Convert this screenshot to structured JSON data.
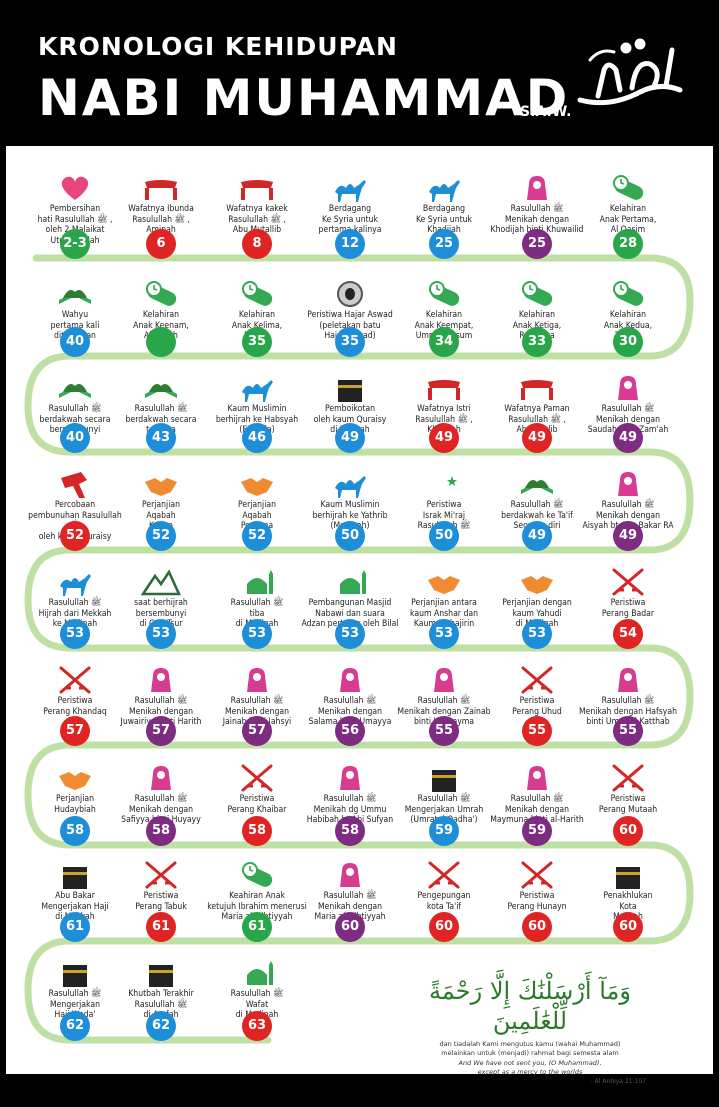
{
  "header": {
    "line1": "KRONOLOGI KEHIDUPAN",
    "line2": "NABI MUHAMMAD",
    "saw": "S.A.W."
  },
  "rows": [
    [
      {
        "icon": "heart",
        "label": "Pembersihan\nhati Rasulullah ﷺ ,\noleh 2 Malaikat\nUtusan Allah",
        "age": "2-3",
        "color": "green"
      },
      {
        "icon": "coffin",
        "label": "Wafatnya Ibunda\nRasulullah ﷺ ,\nAminah",
        "age": "6",
        "color": "red"
      },
      {
        "icon": "coffin",
        "label": "Wafatnya kakek\nRasulullah ﷺ ,\nAbu Mutallib",
        "age": "8",
        "color": "red"
      },
      {
        "icon": "camel",
        "label": "Berdagang\nKe Syria untuk\npertama kalinya",
        "age": "12",
        "color": "blue"
      },
      {
        "icon": "camel",
        "label": "Berdagang\nKe Syria untuk\nKhadijah",
        "age": "25",
        "color": "blue"
      },
      {
        "icon": "bride",
        "label": "Rasulullah ﷺ\nMenikah dengan\nKhodijah binti Khuwailid",
        "age": "25",
        "color": "purple"
      },
      {
        "icon": "baby",
        "label": "Kelahiran\nAnak Pertama,\nAl Qasim",
        "age": "28",
        "color": "green"
      }
    ],
    [
      {
        "icon": "quran",
        "label": "Wahyu\npertama kali\nditurunkan",
        "age": "40",
        "color": "blue"
      },
      {
        "icon": "baby",
        "label": "Kelahiran\nAnak Keenam,\nAbdullah",
        "age": "",
        "color": "green"
      },
      {
        "icon": "baby",
        "label": "Kelahiran\nAnak Kelima,\nFatima",
        "age": "35",
        "color": "green"
      },
      {
        "icon": "stone",
        "label": "Peristiwa Hajar Aswad\n(peletakan batu\nHajar Aswad)",
        "age": "35",
        "color": "blue"
      },
      {
        "icon": "baby",
        "label": "Kelahiran\nAnak Keempat,\nUmmi Kultsum",
        "age": "34",
        "color": "green"
      },
      {
        "icon": "baby",
        "label": "Kelahiran\nAnak Ketiga,\nRuqaiyya",
        "age": "33",
        "color": "green"
      },
      {
        "icon": "baby",
        "label": "Kelahiran\nAnak Kedua,\nZainab",
        "age": "30",
        "color": "green"
      }
    ],
    [
      {
        "icon": "quran",
        "label": "Rasulullah ﷺ\nberdakwah secara\nbersembunyi",
        "age": "40",
        "color": "blue"
      },
      {
        "icon": "quran",
        "label": "Rasulullah ﷺ\nberdakwah secara\nterbuka",
        "age": "43",
        "color": "blue"
      },
      {
        "icon": "camel",
        "label": "Kaum Muslimin\nberhijrah ke Habsyah\n(Ethopia)",
        "age": "46",
        "color": "blue"
      },
      {
        "icon": "kaaba",
        "label": "Pemboikotan\noleh kaum Quraisy\ndi Mekkah",
        "age": "49",
        "color": "blue"
      },
      {
        "icon": "coffin",
        "label": "Wafatnya Istri\nRasulullah ﷺ ,\nKhadijah",
        "age": "49",
        "color": "red"
      },
      {
        "icon": "coffin",
        "label": "Wafatnya Paman\nRasulullah ﷺ ,\nAbu Thalib",
        "age": "49",
        "color": "red"
      },
      {
        "icon": "bride",
        "label": "Rasulullah ﷺ\nMenikah dengan\nSaudah binti Zam'ah",
        "age": "49",
        "color": "purple"
      }
    ],
    [
      {
        "icon": "attack",
        "label": "Percobaan\npembunuhan Rasulullah ﷺ\noleh kaum Quraisy",
        "age": "52",
        "color": "red"
      },
      {
        "icon": "handshake",
        "label": "Perjanjian\nAqabah\nKedua",
        "age": "52",
        "color": "blue"
      },
      {
        "icon": "handshake",
        "label": "Perjanjian\nAqabah\nPertama",
        "age": "52",
        "color": "blue"
      },
      {
        "icon": "camel",
        "label": "Kaum Muslimin\nberhijrah ke Yathrib\n(Madinah)",
        "age": "50",
        "color": "blue"
      },
      {
        "icon": "moon",
        "label": "Peristiwa\nIsrak Mi'raj\nRasulullah ﷺ",
        "age": "50",
        "color": "blue"
      },
      {
        "icon": "quran",
        "label": "Rasulullah ﷺ\nberdakwah ke Ta'if\nSeorang diri",
        "age": "49",
        "color": "blue"
      },
      {
        "icon": "bride",
        "label": "Rasulullah ﷺ\nMenikah dengan\nAisyah bt Abu Bakar RA",
        "age": "49",
        "color": "purple"
      }
    ],
    [
      {
        "icon": "camel",
        "label": "Rasulullah ﷺ\nHijrah dari Mekkah\nke Madinah",
        "age": "53",
        "color": "blue"
      },
      {
        "icon": "mountain",
        "label": "saat berhijrah\nbersembunyi\ndi Gua Tsur",
        "age": "53",
        "color": "blue"
      },
      {
        "icon": "mosque",
        "label": "Rasulullah ﷺ\ntiba\ndi Madinah",
        "age": "53",
        "color": "blue"
      },
      {
        "icon": "mosque",
        "label": "Pembangunan Masjid\nNabawi dan suara\nAdzan pertama oleh Bilal",
        "age": "53",
        "color": "blue"
      },
      {
        "icon": "handshake",
        "label": "Perjanjian antara\nkaum Anshar dan\nKaum Muhajirin",
        "age": "53",
        "color": "blue"
      },
      {
        "icon": "handshake",
        "label": "Perjanjian dengan\nkaum Yahudi\ndi Madinah",
        "age": "53",
        "color": "blue"
      },
      {
        "icon": "swords",
        "label": "Peristiwa\nPerang Badar",
        "age": "54",
        "color": "red"
      }
    ],
    [
      {
        "icon": "swords",
        "label": "Peristiwa\nPerang Khandaq",
        "age": "57",
        "color": "red"
      },
      {
        "icon": "bride",
        "label": "Rasulullah ﷺ\nMenikah dengan\nJuwairiya binti Harith",
        "age": "57",
        "color": "purple"
      },
      {
        "icon": "bride",
        "label": "Rasulullah ﷺ\nMenikah dengan\nJainab binti Jahsyi",
        "age": "57",
        "color": "purple"
      },
      {
        "icon": "bride",
        "label": "Rasulullah ﷺ\nMenikah dengan\nSalama binti Umayya",
        "age": "56",
        "color": "purple"
      },
      {
        "icon": "bride",
        "label": "Rasulullah ﷺ\nMenikah dengan Zainab\nbinti Khuzayma",
        "age": "55",
        "color": "purple"
      },
      {
        "icon": "swords",
        "label": "Peristiwa\nPerang Uhud",
        "age": "55",
        "color": "red"
      },
      {
        "icon": "bride",
        "label": "Rasulullah ﷺ\nMenikah dengan Hafsyah\nbinti Umar Al Katthab",
        "age": "55",
        "color": "purple"
      }
    ],
    [
      {
        "icon": "handshake",
        "label": "Perjanjian\nHudaybiah",
        "age": "58",
        "color": "blue"
      },
      {
        "icon": "bride",
        "label": "Rasulullah ﷺ\nMenikah dengan\nSafiyya binti Huyayy",
        "age": "58",
        "color": "purple"
      },
      {
        "icon": "swords",
        "label": "Peristiwa\nPerang Khaibar",
        "age": "58",
        "color": "red"
      },
      {
        "icon": "bride",
        "label": "Rasulullah ﷺ\nMenikah dg Ummu\nHabibah bt Abi Sufyan",
        "age": "58",
        "color": "purple"
      },
      {
        "icon": "kaaba",
        "label": "Rasulullah ﷺ\nMengerjakan Umrah\n(Umratul Qadha')",
        "age": "59",
        "color": "blue"
      },
      {
        "icon": "bride",
        "label": "Rasulullah ﷺ\nMenikah dengan\nMaymuna binti al-Harith",
        "age": "59",
        "color": "purple"
      },
      {
        "icon": "swords",
        "label": "Peristiwa\nPerang Mutaah",
        "age": "60",
        "color": "red"
      }
    ],
    [
      {
        "icon": "kaaba",
        "label": "Abu Bakar\nMengerjakan Haji\ndi Mekkah",
        "age": "61",
        "color": "blue"
      },
      {
        "icon": "swords",
        "label": "Peristiwa\nPerang Tabuk",
        "age": "61",
        "color": "red"
      },
      {
        "icon": "baby",
        "label": "Keahiran Anak\nketujuh Ibrahim menerusi\nMaria al-Qibtiyyah",
        "age": "61",
        "color": "green"
      },
      {
        "icon": "bride",
        "label": "Rasulullah ﷺ\nMenikah dengan\nMaria al-Qibtiyyah",
        "age": "60",
        "color": "purple"
      },
      {
        "icon": "swords",
        "label": "Pengepungan\nkota Ta'if",
        "age": "60",
        "color": "red"
      },
      {
        "icon": "swords",
        "label": "Peristiwa\nPerang Hunayn",
        "age": "60",
        "color": "red"
      },
      {
        "icon": "kaaba",
        "label": "Penakhlukan\nKota\nMekkah",
        "age": "60",
        "color": "red"
      }
    ],
    [
      {
        "icon": "kaaba",
        "label": "Rasulullah ﷺ\nMengerjakan\nHaji Wada'",
        "age": "62",
        "color": "blue"
      },
      {
        "icon": "kaaba",
        "label": "Khutbah Terakhir\nRasulullah ﷺ\ndi Arafah",
        "age": "62",
        "color": "blue"
      },
      {
        "icon": "mosque",
        "label": "Rasulullah ﷺ\nWafat\ndi Madinah",
        "age": "63",
        "color": "red"
      }
    ]
  ],
  "quote": {
    "arabic": "وَمَآ أَرْسَلْنَٰكَ إِلَّا رَحْمَةً لِّلْعَٰلَمِينَ",
    "indonesian": "dan tiadalah Kami mengutus kamu (wahai Muhammad)\nmelainkan untuk (menjadi) rahmat bagi semesta alam",
    "english": "And We have not sent you, (O Muhammad),\nexcept as a mercy to the worlds",
    "reference": "- Al Anbiya 21:107"
  }
}
